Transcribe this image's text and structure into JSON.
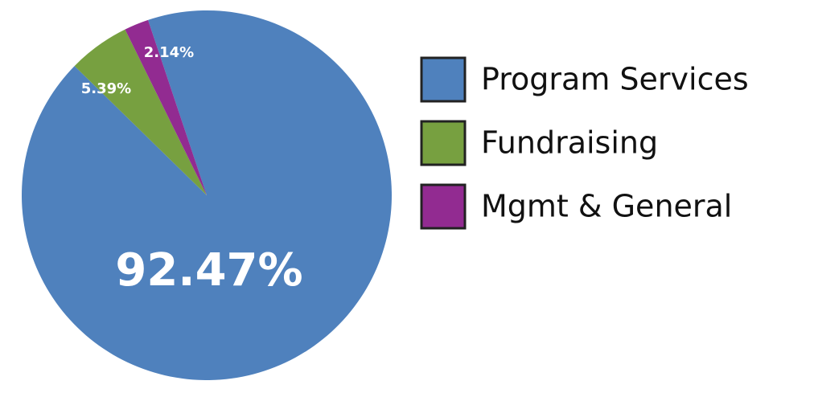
{
  "chart_data": {
    "type": "pie",
    "categories": [
      "Program Services",
      "Fundraising",
      "Mgmt & General"
    ],
    "values": [
      92.47,
      5.39,
      2.14
    ],
    "value_labels": [
      "92.47%",
      "5.39%",
      "2.14%"
    ],
    "colors": [
      "#4f81bd",
      "#77a040",
      "#922b91"
    ],
    "legend": "right"
  }
}
